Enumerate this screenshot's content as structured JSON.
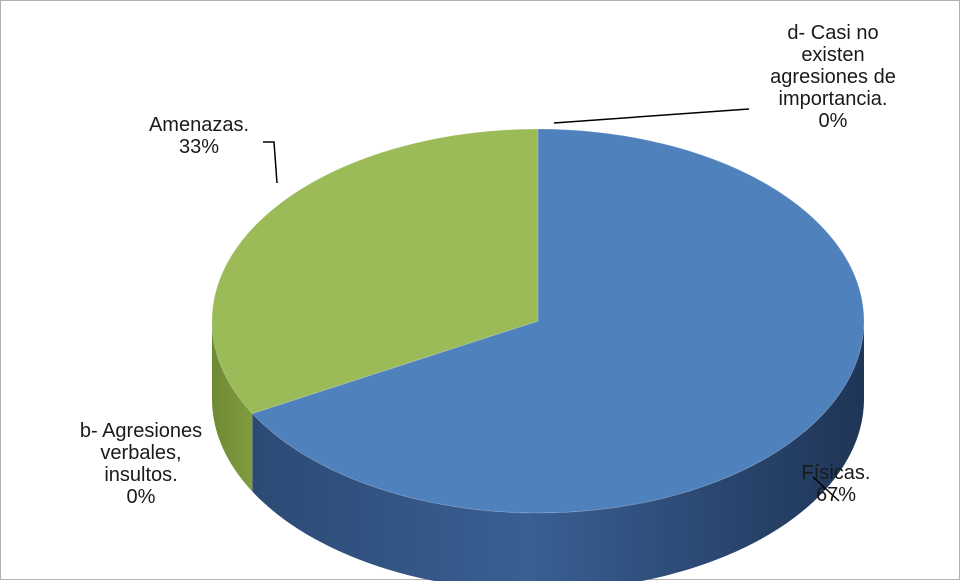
{
  "chart_data": {
    "type": "pie",
    "style": "3d",
    "slices": [
      {
        "name": "Físicas.",
        "value": 67,
        "value_label": "67%",
        "color": "#4F81BD",
        "label_lines": [
          "Físicas.",
          "67%"
        ]
      },
      {
        "name": "b-\tAgresiones verbales, insultos.",
        "value": 0,
        "value_label": "0%",
        "color": "#C0504D",
        "label_lines": [
          "b-    Agresiones",
          "verbales,",
          "insultos.",
          "0%"
        ]
      },
      {
        "name": "Amenazas.",
        "value": 33,
        "value_label": "33%",
        "color": "#9BBB59",
        "label_lines": [
          "Amenazas.",
          "33%"
        ]
      },
      {
        "name": "d-\tCasi no existen agresiones de importancia.",
        "value": 0,
        "value_label": "0%",
        "color": "#8064A2",
        "label_lines": [
          "d-    Casi no",
          "existen",
          "agresiones de",
          "importancia.",
          "0%"
        ]
      }
    ],
    "legend": "none"
  }
}
